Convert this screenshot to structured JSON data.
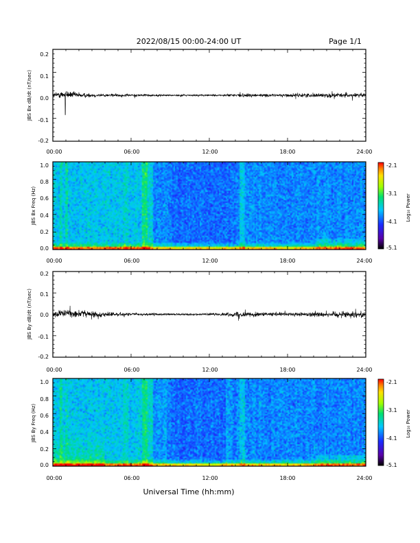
{
  "header": {
    "title": "2022/08/15  00:00-24:00 UT",
    "page": "Page 1/1"
  },
  "xaxis": {
    "title": "Universal Time (hh:mm)",
    "tick_labels": [
      "00:00",
      "06:00",
      "12:00",
      "18:00",
      "24:00"
    ]
  },
  "colorbar": {
    "label": "Log₁₀ Power",
    "tick_labels": [
      "-2.1",
      "-3.1",
      "-4.1",
      "-5.1"
    ]
  },
  "chart_data": [
    {
      "type": "line",
      "ylabel": "JBS Bx dB/dt (nT/sec)",
      "xlim": [
        0,
        24
      ],
      "ylim": [
        -0.2,
        0.2
      ],
      "ytick_labels": [
        "0.2",
        "0.1",
        "0.0",
        "-0.1",
        "-0.2"
      ],
      "x": [
        0,
        1,
        2,
        3,
        4,
        5,
        6,
        7,
        8,
        9,
        10,
        11,
        12,
        13,
        14,
        15,
        16,
        17,
        18,
        19,
        20,
        21,
        22,
        23,
        24
      ],
      "series": [
        {
          "values": [
            0.0,
            0.005,
            0.0,
            0.0,
            0.0,
            0.0,
            0.0,
            0.0,
            0.0,
            0.0,
            0.0,
            0.0,
            0.0,
            0.0,
            0.0,
            0.0,
            0.0,
            0.0,
            0.0,
            0.0,
            0.0,
            0.0,
            0.0,
            0.0,
            0.0
          ],
          "envelope": [
            0.02,
            0.03,
            0.02,
            0.015,
            0.012,
            0.01,
            0.01,
            0.01,
            0.008,
            0.007,
            0.007,
            0.007,
            0.007,
            0.008,
            0.013,
            0.015,
            0.012,
            0.01,
            0.012,
            0.015,
            0.016,
            0.017,
            0.017,
            0.017,
            0.017
          ]
        }
      ]
    },
    {
      "type": "heatmap",
      "ylabel": "JBS Bx Freq (Hz)",
      "xlim": [
        0,
        24
      ],
      "ylim": [
        0.0,
        1.0
      ],
      "ytick_labels": [
        "1.0",
        "0.8",
        "0.6",
        "0.4",
        "0.2",
        "0.0"
      ],
      "colorbar_range": [
        -5.1,
        -2.1
      ]
    },
    {
      "type": "line",
      "ylabel": "JBS By dB/dt (nT/sec)",
      "xlim": [
        0,
        24
      ],
      "ylim": [
        -0.2,
        0.2
      ],
      "ytick_labels": [
        "0.2",
        "0.1",
        "0.0",
        "-0.1",
        "-0.2"
      ],
      "x": [
        0,
        1,
        2,
        3,
        4,
        5,
        6,
        7,
        8,
        9,
        10,
        11,
        12,
        13,
        14,
        15,
        16,
        17,
        18,
        19,
        20,
        21,
        22,
        23,
        24
      ],
      "series": [
        {
          "values": [
            0.0,
            0.005,
            0.005,
            0.0,
            0.0,
            0.0,
            0.0,
            0.0,
            0.0,
            0.0,
            0.0,
            0.0,
            0.0,
            0.0,
            0.0,
            0.0,
            0.0,
            0.0,
            0.0,
            0.0,
            0.0,
            0.0,
            0.0,
            0.0,
            0.0
          ],
          "envelope": [
            0.025,
            0.03,
            0.03,
            0.025,
            0.02,
            0.015,
            0.012,
            0.01,
            0.01,
            0.008,
            0.008,
            0.008,
            0.009,
            0.01,
            0.02,
            0.02,
            0.015,
            0.015,
            0.016,
            0.018,
            0.02,
            0.022,
            0.025,
            0.025,
            0.025
          ]
        }
      ]
    },
    {
      "type": "heatmap",
      "ylabel": "JBS By Freq (Hz)",
      "xlim": [
        0,
        24
      ],
      "ylim": [
        0.0,
        1.0
      ],
      "ytick_labels": [
        "1.0",
        "0.8",
        "0.6",
        "0.4",
        "0.2",
        "0.0"
      ],
      "colorbar_range": [
        -5.1,
        -2.1
      ]
    }
  ]
}
